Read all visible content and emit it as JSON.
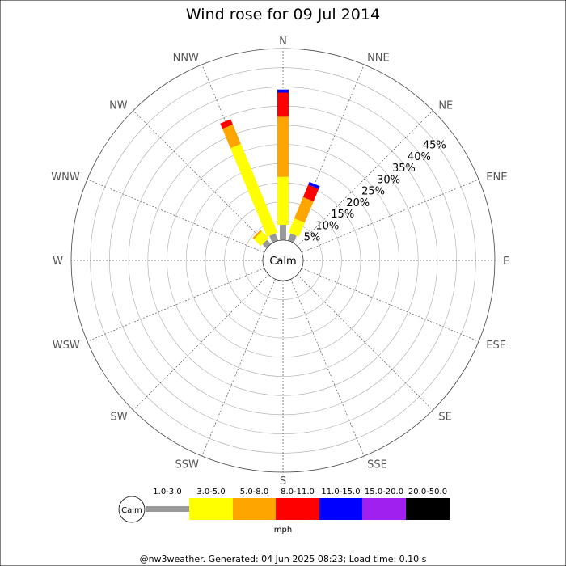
{
  "chart_data": {
    "type": "wind_rose",
    "title": "Wind rose for 09 Jul 2014",
    "calm_label": "Calm",
    "directions": [
      "N",
      "NNE",
      "NE",
      "ENE",
      "E",
      "ESE",
      "SE",
      "SSE",
      "S",
      "SSW",
      "SW",
      "WSW",
      "W",
      "WNW",
      "NW",
      "NNW"
    ],
    "radial_ticks": [
      5,
      10,
      15,
      20,
      25,
      30,
      35,
      40,
      45
    ],
    "radial_tick_suffix": "%",
    "radial_max": 50,
    "speed_bins": [
      {
        "label": "1.0-3.0",
        "color": "#999999"
      },
      {
        "label": "3.0-5.0",
        "color": "#ffff00"
      },
      {
        "label": "5.0-8.0",
        "color": "#ffa500"
      },
      {
        "label": "8.0-11.0",
        "color": "#ff0000"
      },
      {
        "label": "11.0-15.0",
        "color": "#0000ff"
      },
      {
        "label": "15.0-20.0",
        "color": "#a020f0"
      },
      {
        "label": "20.0-50.0",
        "color": "#000000"
      }
    ],
    "units_label": "mph",
    "series": [
      {
        "direction": "N",
        "values": [
          4.0,
          12.5,
          15.7,
          6.3,
          0.8,
          0,
          0
        ]
      },
      {
        "direction": "NNE",
        "values": [
          2.0,
          4.0,
          6.0,
          3.5,
          0.8,
          0,
          0
        ]
      },
      {
        "direction": "NNW",
        "values": [
          2.0,
          25.0,
          5.5,
          1.5,
          0,
          0,
          0
        ]
      },
      {
        "direction": "NW",
        "values": [
          1.5,
          2.5,
          0.5,
          0,
          0,
          0,
          0
        ]
      }
    ]
  },
  "footer": "@nw3weather. Generated: 04 Jun 2025 08:23; Load time: 0.10 s"
}
